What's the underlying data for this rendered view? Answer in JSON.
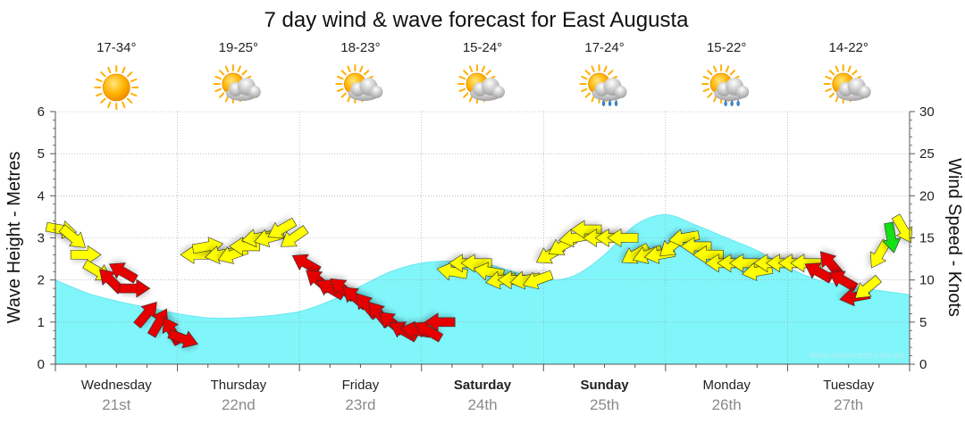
{
  "chart_data": {
    "type": "line",
    "title": "7 day wind & wave forecast for East Augusta",
    "ylabel_left": "Wave Height - Metres",
    "ylabel_right": "Wind Speed - Knots",
    "ylim_left": [
      0,
      6
    ],
    "ylim_right": [
      0,
      30
    ],
    "yticks_left": [
      "0",
      "1",
      "2",
      "3",
      "4",
      "5",
      "6"
    ],
    "yticks_right": [
      "0",
      "5",
      "10",
      "15",
      "20",
      "25",
      "30"
    ],
    "x_range_days": [
      0,
      7
    ],
    "days": [
      {
        "name": "Wednesday",
        "date": "21st",
        "bold": false,
        "temp": "17-34°",
        "weather": "sunny"
      },
      {
        "name": "Thursday",
        "date": "22nd",
        "bold": false,
        "temp": "19-25°",
        "weather": "partly-cloudy"
      },
      {
        "name": "Friday",
        "date": "23rd",
        "bold": false,
        "temp": "18-23°",
        "weather": "partly-cloudy"
      },
      {
        "name": "Saturday",
        "date": "24th",
        "bold": true,
        "temp": "15-24°",
        "weather": "partly-cloudy"
      },
      {
        "name": "Sunday",
        "date": "25th",
        "bold": true,
        "temp": "17-24°",
        "weather": "showers"
      },
      {
        "name": "Monday",
        "date": "26th",
        "bold": false,
        "temp": "15-22°",
        "weather": "showers"
      },
      {
        "name": "Tuesday",
        "date": "27th",
        "bold": false,
        "temp": "14-22°",
        "weather": "partly-cloudy"
      }
    ],
    "wave_series": {
      "name": "Wave Height",
      "unit": "m",
      "x_days": [
        0,
        0.25,
        0.5,
        0.75,
        1.0,
        1.25,
        1.5,
        1.75,
        2.0,
        2.25,
        2.5,
        2.75,
        3.0,
        3.25,
        3.5,
        3.75,
        4.0,
        4.25,
        4.5,
        4.75,
        5.0,
        5.25,
        5.5,
        5.75,
        6.0,
        6.25,
        6.5,
        6.75,
        7.0
      ],
      "y": [
        2.0,
        1.7,
        1.5,
        1.35,
        1.2,
        1.1,
        1.1,
        1.15,
        1.25,
        1.5,
        1.85,
        2.2,
        2.4,
        2.45,
        2.4,
        2.2,
        2.0,
        2.1,
        2.6,
        3.3,
        3.55,
        3.3,
        3.0,
        2.7,
        2.3,
        2.0,
        1.85,
        1.75,
        1.65
      ]
    },
    "wind_series": {
      "name": "Wind Speed",
      "unit": "knots",
      "x_days": [
        0.05,
        0.15,
        0.25,
        0.35,
        0.45,
        0.55,
        0.65,
        0.75,
        0.85,
        0.95,
        1.05,
        1.15,
        1.25,
        1.35,
        1.45,
        1.55,
        1.65,
        1.75,
        1.85,
        1.95,
        2.05,
        2.15,
        2.25,
        2.35,
        2.45,
        2.55,
        2.65,
        2.75,
        2.85,
        2.95,
        3.05,
        3.15,
        3.25,
        3.35,
        3.45,
        3.55,
        3.65,
        3.75,
        3.85,
        3.95,
        4.05,
        4.15,
        4.25,
        4.35,
        4.45,
        4.55,
        4.65,
        4.75,
        4.85,
        4.95,
        5.05,
        5.15,
        5.25,
        5.35,
        5.45,
        5.55,
        5.65,
        5.75,
        5.85,
        5.95,
        6.05,
        6.15,
        6.25,
        6.35,
        6.45,
        6.55,
        6.65,
        6.75,
        6.85,
        6.95
      ],
      "knots": [
        16,
        15,
        13,
        11,
        10,
        11,
        9,
        6,
        5,
        4,
        3,
        13,
        14,
        13,
        13,
        14,
        15,
        15,
        16,
        15,
        12,
        10,
        9,
        9,
        8,
        7,
        6,
        5,
        4,
        4,
        4,
        5,
        11,
        12,
        12,
        11,
        10,
        10,
        10,
        10,
        13,
        14,
        15,
        16,
        15,
        15,
        15,
        13,
        13,
        13,
        14,
        15,
        14,
        13,
        12,
        12,
        12,
        11,
        12,
        12,
        12,
        12,
        11,
        12,
        10,
        8,
        9,
        13,
        15,
        16
      ],
      "direction_deg": [
        100,
        130,
        90,
        120,
        315,
        300,
        90,
        40,
        30,
        330,
        110,
        270,
        80,
        260,
        250,
        270,
        260,
        255,
        240,
        235,
        300,
        310,
        300,
        310,
        310,
        320,
        320,
        310,
        300,
        280,
        300,
        270,
        280,
        270,
        270,
        280,
        260,
        270,
        260,
        250,
        240,
        240,
        260,
        270,
        270,
        270,
        270,
        240,
        250,
        260,
        230,
        260,
        270,
        270,
        270,
        270,
        270,
        260,
        270,
        270,
        270,
        270,
        300,
        320,
        300,
        260,
        230,
        210,
        170,
        150
      ],
      "level": [
        "y",
        "y",
        "y",
        "y",
        "r",
        "r",
        "r",
        "r",
        "r",
        "r",
        "r",
        "y",
        "y",
        "y",
        "y",
        "y",
        "y",
        "y",
        "y",
        "y",
        "r",
        "r",
        "r",
        "r",
        "r",
        "r",
        "r",
        "r",
        "r",
        "r",
        "r",
        "r",
        "y",
        "y",
        "y",
        "y",
        "y",
        "y",
        "y",
        "y",
        "y",
        "y",
        "y",
        "y",
        "y",
        "y",
        "y",
        "y",
        "y",
        "y",
        "y",
        "y",
        "y",
        "y",
        "y",
        "y",
        "y",
        "y",
        "y",
        "y",
        "y",
        "y",
        "r",
        "r",
        "r",
        "r",
        "y",
        "y",
        "g",
        "y"
      ]
    },
    "colors": {
      "wave_fill": "#80f6fb",
      "wave_fill_dark": "#6be6ee",
      "wind_light": "#ffff00",
      "wind_moderate": "#e60000",
      "wind_strong": "#14e014"
    },
    "grid": true,
    "credit": "www.seabreeze.com.au"
  }
}
